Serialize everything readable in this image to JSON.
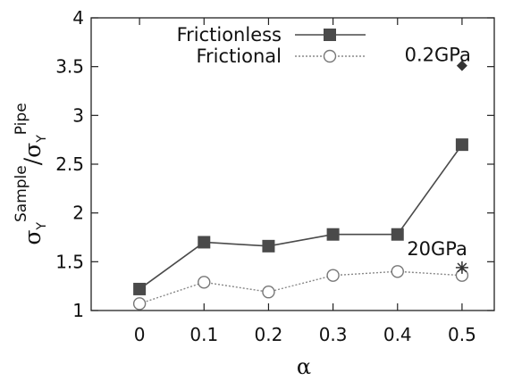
{
  "chart_data": {
    "type": "line",
    "title": "",
    "xlabel": "α",
    "ylabel": {
      "numerator_symbol": "σ",
      "numerator_subscript": "Y",
      "numerator_superscript": "Sample",
      "separator": "/",
      "denominator_symbol": "σ",
      "denominator_subscript": "Y",
      "denominator_superscript": "Pipe"
    },
    "x": [
      0,
      0.1,
      0.2,
      0.3,
      0.4,
      0.5
    ],
    "x_tick_labels": [
      "0",
      "0.1",
      "0.2",
      "0.3",
      "0.4",
      "0.5"
    ],
    "xlim": [
      -0.075,
      0.55
    ],
    "y_ticks": [
      1,
      1.5,
      2,
      2.5,
      3,
      3.5,
      4
    ],
    "y_tick_labels": [
      "1",
      "1.5",
      "2",
      "2.5",
      "3",
      "3.5",
      "4"
    ],
    "ylim": [
      1,
      4
    ],
    "grid": false,
    "legend_position": "top-right",
    "series": [
      {
        "name": "Frictionless",
        "values": [
          1.22,
          1.7,
          1.66,
          1.78,
          1.78,
          2.7
        ],
        "color": "#4a4a4a",
        "line": "solid",
        "marker": "filled-square"
      },
      {
        "name": "Frictional",
        "values": [
          1.07,
          1.29,
          1.19,
          1.36,
          1.4,
          1.36
        ],
        "color": "#888888",
        "line": "dotted",
        "marker": "open-circle"
      }
    ],
    "annotations": [
      {
        "label": "0.2GPa",
        "x": 0.5,
        "y": 3.51,
        "marker": "diamond"
      },
      {
        "label": "20GPa",
        "x": 0.5,
        "y": 1.44,
        "marker": "asterisk"
      }
    ]
  }
}
